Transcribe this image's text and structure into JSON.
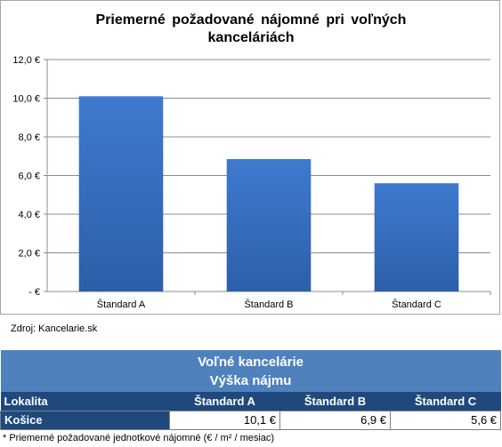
{
  "chart_data": {
    "type": "bar",
    "title": "Priemerné  požadované  nájomné  pri voľných\nkanceláriách",
    "categories": [
      "Štandard A",
      "Štandard B",
      "Štandard C"
    ],
    "values": [
      10.1,
      6.85,
      5.6
    ],
    "ylim": [
      0,
      12
    ],
    "yticks": [
      0,
      2,
      4,
      6,
      8,
      10,
      12
    ],
    "ytick_labels": [
      " -  €",
      "2,0 €",
      "4,0 €",
      "6,0 €",
      "8,0 €",
      "10,0 €",
      "12,0 €"
    ],
    "grid": true,
    "bar_color": "#4a7ebb",
    "xlabel": "",
    "ylabel": ""
  },
  "source": "Zdroj: Kancelarie.sk",
  "table": {
    "band_line1": "Voľné kancelárie",
    "band_line2": "Výška nájmu",
    "header_location": "Lokalita",
    "headers": [
      "Štandard A",
      "Štandard B",
      "Štandard C"
    ],
    "row_city": "Košice",
    "row_values": [
      "10,1 €",
      "6,9 €",
      "5,6 €"
    ],
    "band_color": "#4f81bd",
    "header_color": "#1f497d"
  },
  "footnote": "* Priemerné požadované jednotkové nájomné (€ / m² / mesiac)"
}
